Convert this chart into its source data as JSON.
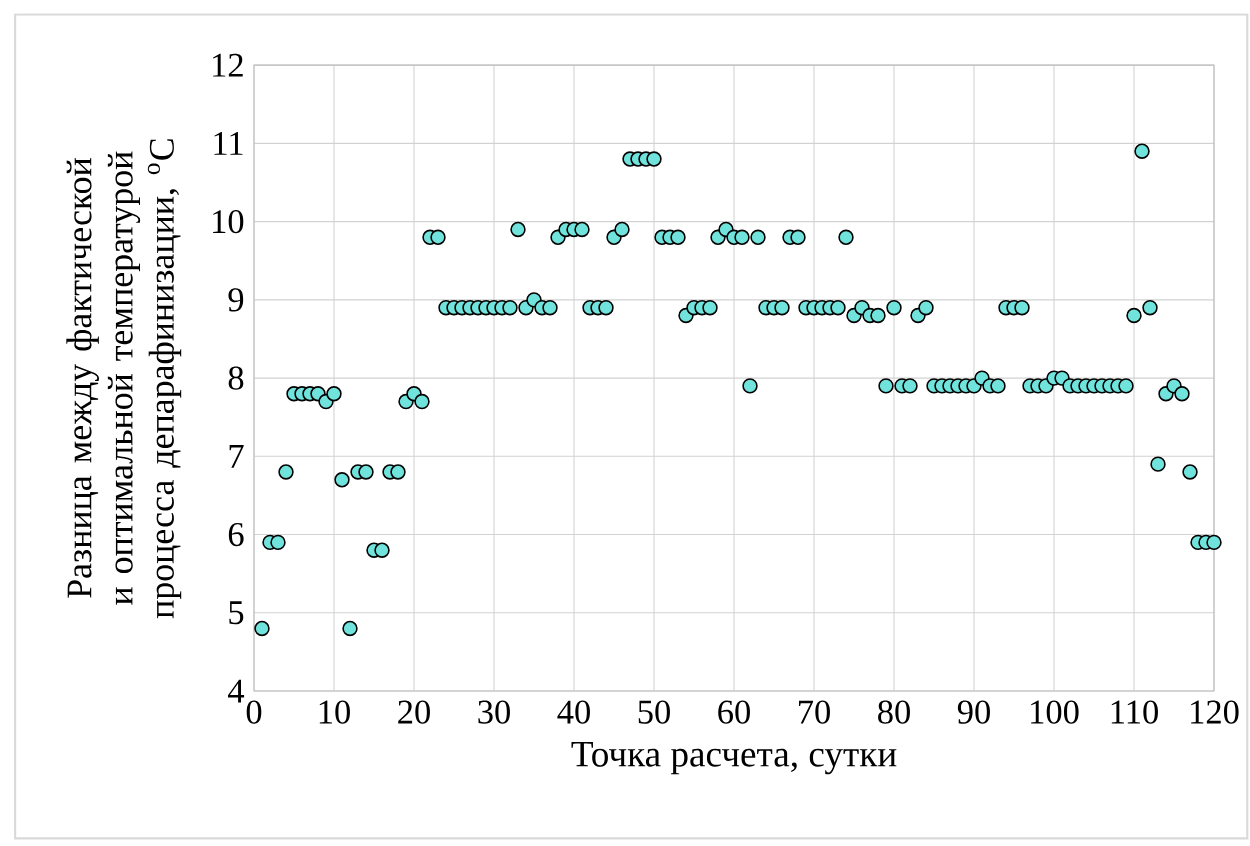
{
  "chart_data": {
    "type": "scatter",
    "xlabel": "Точка расчета, сутки",
    "ylabel": "Разница между фактической и оптимальной температурой процесса депарафинизации, $^{o}$C",
    "x": [
      1,
      2,
      3,
      4,
      5,
      6,
      7,
      8,
      9,
      10,
      11,
      12,
      13,
      14,
      15,
      16,
      17,
      18,
      19,
      20,
      21,
      22,
      23,
      24,
      25,
      26,
      27,
      28,
      29,
      30,
      31,
      32,
      33,
      34,
      35,
      36,
      37,
      38,
      39,
      40,
      41,
      42,
      43,
      44,
      45,
      46,
      47,
      48,
      49,
      50,
      51,
      52,
      53,
      54,
      55,
      56,
      57,
      58,
      59,
      60,
      61,
      62,
      63,
      64,
      65,
      66,
      67,
      68,
      69,
      70,
      71,
      72,
      73,
      74,
      75,
      76,
      77,
      78,
      79,
      80,
      81,
      82,
      83,
      84,
      85,
      86,
      87,
      88,
      89,
      90,
      91,
      92,
      93,
      94,
      95,
      96,
      97,
      98,
      99,
      100,
      101,
      102,
      103,
      104,
      105,
      106,
      107,
      108,
      109,
      110,
      111,
      112,
      113,
      114,
      115,
      116,
      117,
      118,
      119,
      120
    ],
    "values": [
      4.8,
      5.9,
      5.9,
      6.8,
      7.8,
      7.8,
      7.8,
      7.8,
      7.7,
      7.8,
      6.7,
      4.8,
      6.8,
      6.8,
      5.8,
      5.8,
      6.8,
      6.8,
      7.7,
      7.8,
      7.7,
      9.8,
      9.8,
      8.9,
      8.9,
      8.9,
      8.9,
      8.9,
      8.9,
      8.9,
      8.9,
      8.9,
      9.9,
      8.9,
      9.0,
      8.9,
      8.9,
      9.8,
      9.9,
      9.9,
      9.9,
      8.9,
      8.9,
      8.9,
      9.8,
      9.9,
      10.8,
      10.8,
      10.8,
      10.8,
      9.8,
      9.8,
      9.8,
      8.8,
      8.9,
      8.9,
      8.9,
      9.8,
      9.9,
      9.8,
      9.8,
      7.9,
      9.8,
      8.9,
      8.9,
      8.9,
      9.8,
      9.8,
      8.9,
      8.9,
      8.9,
      8.9,
      8.9,
      9.8,
      8.8,
      8.9,
      8.8,
      8.8,
      7.9,
      8.9,
      7.9,
      7.9,
      8.8,
      8.9,
      7.9,
      7.9,
      7.9,
      7.9,
      7.9,
      7.9,
      8.0,
      7.9,
      7.9,
      8.9,
      8.9,
      8.9,
      7.9,
      7.9,
      7.9,
      8.0,
      8.0,
      7.9,
      7.9,
      7.9,
      7.9,
      7.9,
      7.9,
      7.9,
      7.9,
      8.8,
      10.9,
      8.9,
      6.9,
      7.8,
      7.9,
      7.8,
      6.8,
      5.9,
      5.9,
      5.9
    ],
    "color": "#6fe3dc",
    "xlim": [
      0,
      120
    ],
    "xticks": [
      0,
      10,
      20,
      30,
      40,
      50,
      60,
      70,
      80,
      90,
      100,
      110,
      120
    ],
    "ylim": [
      4,
      12
    ],
    "yticks": [
      4,
      5,
      6,
      7,
      8,
      9,
      10,
      11,
      12
    ],
    "grid": true
  }
}
